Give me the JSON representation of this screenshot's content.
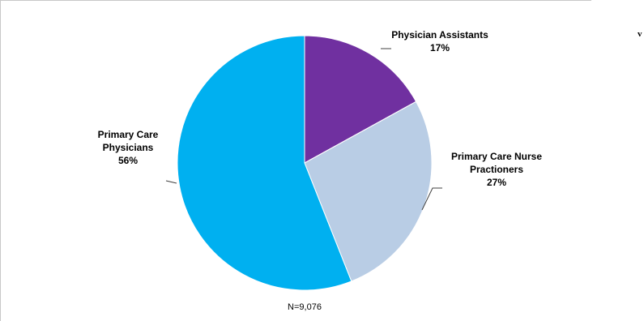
{
  "chart_data": {
    "type": "pie",
    "slices": [
      {
        "label_lines": [
          "Physician Assistants"
        ],
        "percent_label": "17%",
        "value": 17,
        "color": "#7030a0"
      },
      {
        "label_lines": [
          "Primary Care Nurse",
          "Practioners"
        ],
        "percent_label": "27%",
        "value": 27,
        "color": "#b9cde5"
      },
      {
        "label_lines": [
          "Primary Care",
          "Physicians"
        ],
        "percent_label": "56%",
        "value": 56,
        "color": "#00b0f0"
      }
    ],
    "note": "N=9,076",
    "legend": "none"
  },
  "edge_text": "v"
}
